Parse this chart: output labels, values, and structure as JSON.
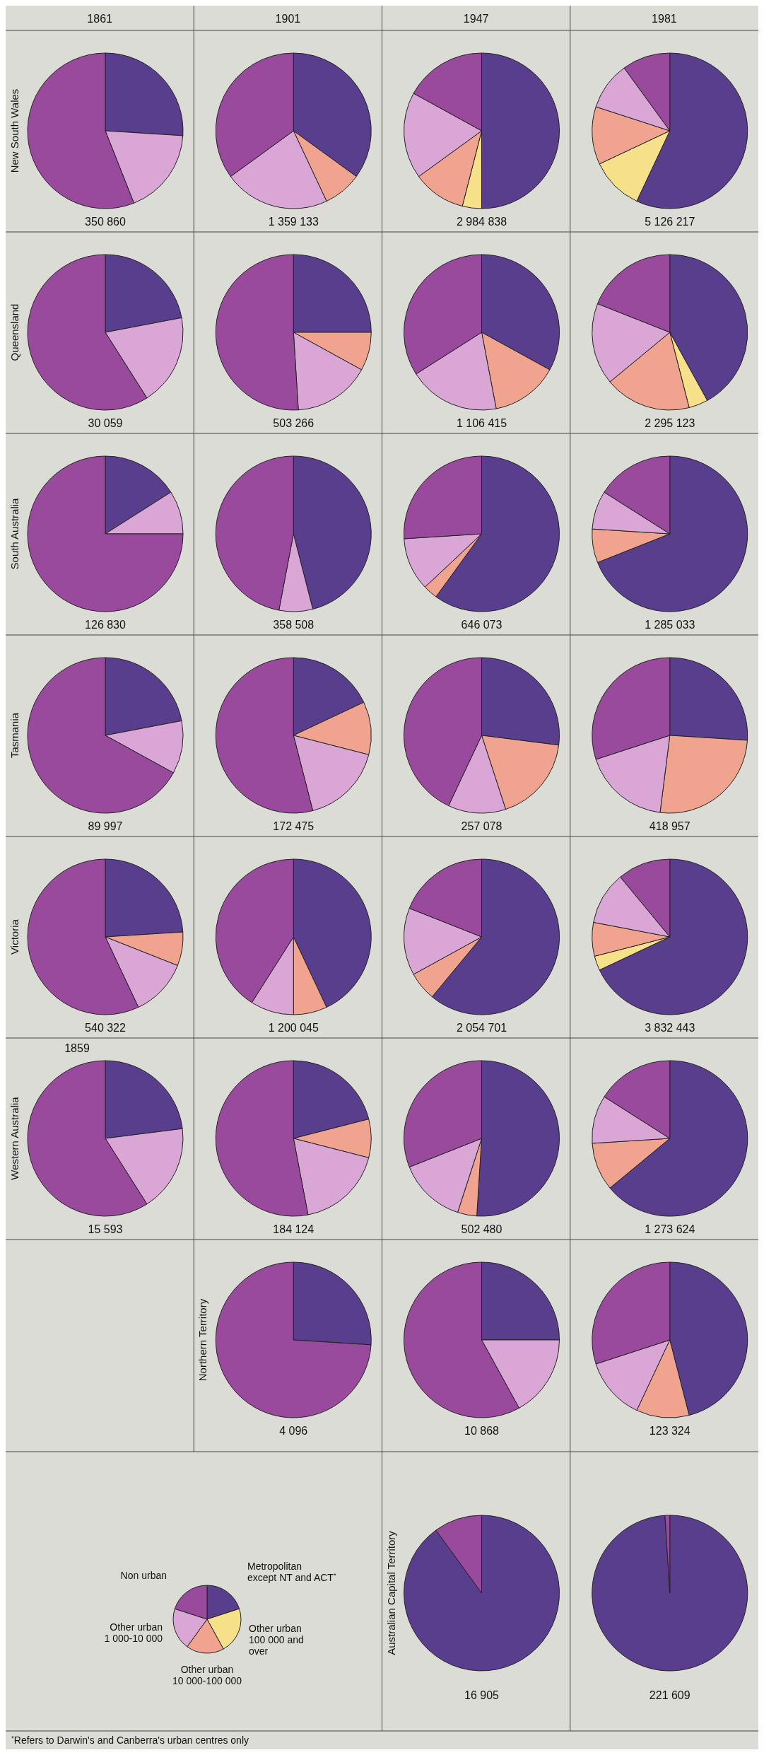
{
  "chart_data": [
    {
      "type": "pie",
      "title": "1861",
      "ylabel": "New South Wales",
      "xlabel": "350 860",
      "values": [
        26,
        18,
        56
      ],
      "colors": [
        "#5a3e8e",
        "#d9a6d6",
        "#9a4a9c"
      ]
    },
    {
      "type": "pie",
      "title": "1901",
      "xlabel": "1 359 133",
      "values": [
        35,
        8,
        22,
        35
      ],
      "colors": [
        "#5a3e8e",
        "#f0a490",
        "#d9a6d6",
        "#9a4a9c"
      ]
    },
    {
      "type": "pie",
      "title": "1947",
      "xlabel": "2 984 838",
      "values": [
        50,
        4,
        11,
        18,
        17
      ],
      "colors": [
        "#5a3e8e",
        "#f7e08a",
        "#f0a490",
        "#d9a6d6",
        "#9a4a9c"
      ]
    },
    {
      "type": "pie",
      "title": "1981",
      "xlabel": "5 126 217",
      "values": [
        57,
        11,
        12,
        10,
        10
      ],
      "colors": [
        "#5a3e8e",
        "#f7e08a",
        "#f0a490",
        "#d9a6d6",
        "#9a4a9c"
      ]
    },
    {
      "type": "pie",
      "ylabel": "Queensland",
      "xlabel": "30 059",
      "values": [
        22,
        19,
        59
      ],
      "colors": [
        "#5a3e8e",
        "#d9a6d6",
        "#9a4a9c"
      ]
    },
    {
      "type": "pie",
      "xlabel": "503 266",
      "values": [
        25,
        8,
        16,
        51
      ],
      "colors": [
        "#5a3e8e",
        "#f0a490",
        "#d9a6d6",
        "#9a4a9c"
      ]
    },
    {
      "type": "pie",
      "xlabel": "1 106 415",
      "values": [
        33,
        14,
        19,
        34
      ],
      "colors": [
        "#5a3e8e",
        "#f0a490",
        "#d9a6d6",
        "#9a4a9c"
      ]
    },
    {
      "type": "pie",
      "xlabel": "2 295 123",
      "values": [
        42,
        4,
        18,
        17,
        19
      ],
      "colors": [
        "#5a3e8e",
        "#f7e08a",
        "#f0a490",
        "#d9a6d6",
        "#9a4a9c"
      ]
    },
    {
      "type": "pie",
      "ylabel": "South Australia",
      "xlabel": "126 830",
      "values": [
        16,
        9,
        75
      ],
      "colors": [
        "#5a3e8e",
        "#d9a6d6",
        "#9a4a9c"
      ]
    },
    {
      "type": "pie",
      "xlabel": "358 508",
      "values": [
        46,
        7,
        47
      ],
      "colors": [
        "#5a3e8e",
        "#d9a6d6",
        "#9a4a9c"
      ]
    },
    {
      "type": "pie",
      "xlabel": "646 073",
      "values": [
        60,
        3,
        11,
        26
      ],
      "colors": [
        "#5a3e8e",
        "#f0a490",
        "#d9a6d6",
        "#9a4a9c"
      ]
    },
    {
      "type": "pie",
      "xlabel": "1 285 033",
      "values": [
        69,
        7,
        8,
        16
      ],
      "colors": [
        "#5a3e8e",
        "#f0a490",
        "#d9a6d6",
        "#9a4a9c"
      ]
    },
    {
      "type": "pie",
      "ylabel": "Tasmania",
      "xlabel": "89 997",
      "values": [
        22,
        11,
        67
      ],
      "colors": [
        "#5a3e8e",
        "#d9a6d6",
        "#9a4a9c"
      ]
    },
    {
      "type": "pie",
      "xlabel": "172 475",
      "values": [
        18,
        11,
        17,
        54
      ],
      "colors": [
        "#5a3e8e",
        "#f0a490",
        "#d9a6d6",
        "#9a4a9c"
      ]
    },
    {
      "type": "pie",
      "xlabel": "257 078",
      "values": [
        27,
        18,
        12,
        43
      ],
      "colors": [
        "#5a3e8e",
        "#f0a490",
        "#d9a6d6",
        "#9a4a9c"
      ]
    },
    {
      "type": "pie",
      "xlabel": "418 957",
      "values": [
        26,
        26,
        18,
        30
      ],
      "colors": [
        "#5a3e8e",
        "#f0a490",
        "#d9a6d6",
        "#9a4a9c"
      ]
    },
    {
      "type": "pie",
      "ylabel": "Victoria",
      "xlabel": "540 322",
      "values": [
        24,
        7,
        12,
        57
      ],
      "colors": [
        "#5a3e8e",
        "#f0a490",
        "#d9a6d6",
        "#9a4a9c"
      ]
    },
    {
      "type": "pie",
      "xlabel": "1 200 045",
      "values": [
        43,
        7,
        9,
        41
      ],
      "colors": [
        "#5a3e8e",
        "#f0a490",
        "#d9a6d6",
        "#9a4a9c"
      ]
    },
    {
      "type": "pie",
      "xlabel": "2 054 701",
      "values": [
        61,
        6,
        14,
        19
      ],
      "colors": [
        "#5a3e8e",
        "#f0a490",
        "#d9a6d6",
        "#9a4a9c"
      ]
    },
    {
      "type": "pie",
      "xlabel": "3 832 443",
      "values": [
        68,
        3,
        7,
        11,
        11
      ],
      "colors": [
        "#5a3e8e",
        "#f7e08a",
        "#f0a490",
        "#d9a6d6",
        "#9a4a9c"
      ]
    },
    {
      "type": "pie",
      "title": "1859",
      "ylabel": "Western Australia",
      "xlabel": "15 593",
      "values": [
        23,
        18,
        59
      ],
      "colors": [
        "#5a3e8e",
        "#d9a6d6",
        "#9a4a9c"
      ]
    },
    {
      "type": "pie",
      "xlabel": "184 124",
      "values": [
        21,
        8,
        18,
        53
      ],
      "colors": [
        "#5a3e8e",
        "#f0a490",
        "#d9a6d6",
        "#9a4a9c"
      ]
    },
    {
      "type": "pie",
      "xlabel": "502 480",
      "values": [
        51,
        4,
        14,
        31
      ],
      "colors": [
        "#5a3e8e",
        "#f0a490",
        "#d9a6d6",
        "#9a4a9c"
      ]
    },
    {
      "type": "pie",
      "xlabel": "1 273 624",
      "values": [
        64,
        10,
        10,
        16
      ],
      "colors": [
        "#5a3e8e",
        "#f0a490",
        "#d9a6d6",
        "#9a4a9c"
      ]
    },
    {
      "type": "pie",
      "ylabel": "Northern Territory",
      "xlabel": "4 096",
      "values": [
        26,
        74
      ],
      "colors": [
        "#5a3e8e",
        "#9a4a9c"
      ]
    },
    {
      "type": "pie",
      "xlabel": "10 868",
      "values": [
        25,
        17,
        58
      ],
      "colors": [
        "#5a3e8e",
        "#d9a6d6",
        "#9a4a9c"
      ]
    },
    {
      "type": "pie",
      "xlabel": "123 324",
      "values": [
        46,
        11,
        13,
        30
      ],
      "colors": [
        "#5a3e8e",
        "#f0a490",
        "#d9a6d6",
        "#9a4a9c"
      ]
    },
    {
      "type": "pie",
      "ylabel": "Australian Capital Territory",
      "xlabel": "16 905",
      "values": [
        90,
        10
      ],
      "colors": [
        "#5a3e8e",
        "#9a4a9c"
      ]
    },
    {
      "type": "pie",
      "xlabel": "221 609",
      "values": [
        99,
        1
      ],
      "colors": [
        "#5a3e8e",
        "#9a4a9c"
      ]
    },
    {
      "type": "pie",
      "categories": [
        "Metropolitan except NT and ACT$^{*}$",
        "Other urban 100 000 and over",
        "Other urban 10 000-100 000",
        "Other urban 1 000-10 000",
        "Non urban"
      ],
      "values": [
        20,
        22,
        18,
        20,
        20
      ],
      "colors": [
        "#5a3e8e",
        "#f7e08a",
        "#f0a490",
        "#d9a6d6",
        "#9a4a9c"
      ],
      "annotations": [
        "$^{*}$Refers to Darwin's and Canberra's urban centres only"
      ]
    }
  ]
}
